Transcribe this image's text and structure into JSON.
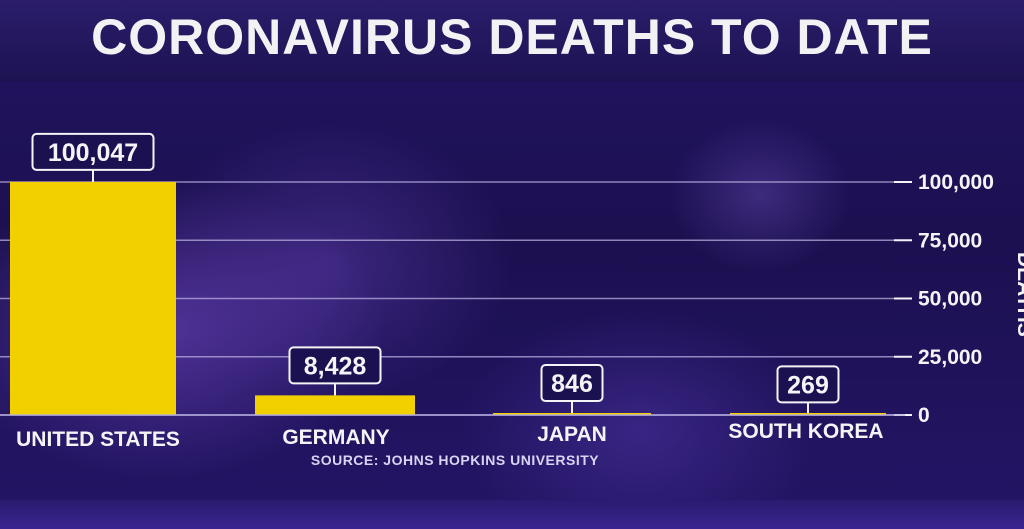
{
  "title": "CORONAVIRUS DEATHS TO DATE",
  "source": "SOURCE: JOHNS HOPKINS UNIVERSITY",
  "axis_side_label": "DEATHS",
  "colors": {
    "bar": "#f2d000",
    "gridline": "#b7aee0",
    "text": "#f4f4f6",
    "background": "#1a0f4a"
  },
  "chart_data": {
    "type": "bar",
    "title": "CORONAVIRUS DEATHS TO DATE",
    "categories": [
      "UNITED STATES",
      "GERMANY",
      "JAPAN",
      "SOUTH KOREA"
    ],
    "values": [
      100047,
      8428,
      846,
      269
    ],
    "value_labels": [
      "100,047",
      "8,428",
      "846",
      "269"
    ],
    "ylabel": "DEATHS",
    "ylim": [
      0,
      100000
    ],
    "yticks": [
      0,
      25000,
      50000,
      75000,
      100000
    ],
    "ytick_labels": [
      "0",
      "25,000",
      "50,000",
      "75,000",
      "100,000"
    ],
    "grid": true,
    "axis_side": "right"
  }
}
